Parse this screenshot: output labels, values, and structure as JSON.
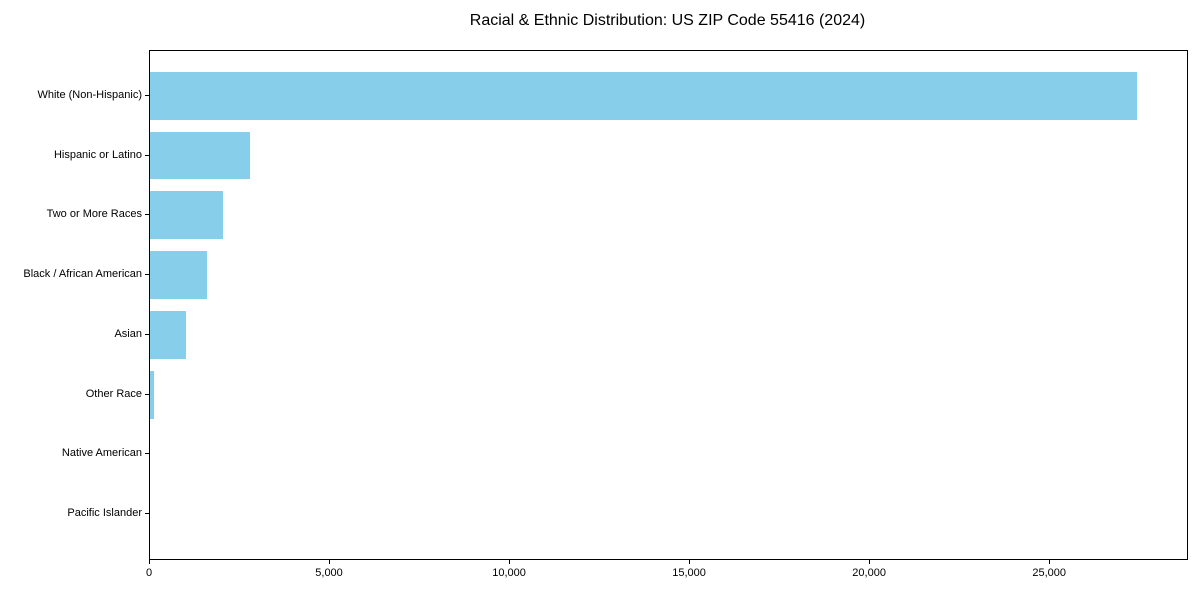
{
  "figure": {
    "background": "#ffffff"
  },
  "chart_data": {
    "type": "bar",
    "orientation": "horizontal",
    "title": "Racial & Ethnic Distribution: US ZIP Code 55416 (2024)",
    "categories": [
      "White (Non-Hispanic)",
      "Hispanic or Latino",
      "Two or More Races",
      "Black / African American",
      "Asian",
      "Other Race",
      "Native American",
      "Pacific Islander"
    ],
    "values": [
      27400,
      2780,
      2030,
      1580,
      1000,
      120,
      0,
      0
    ],
    "xlabel": "",
    "ylabel": "",
    "xlim": [
      0,
      28800
    ],
    "x_ticks": [
      0,
      5000,
      10000,
      15000,
      20000,
      25000
    ],
    "x_tick_labels": [
      "0",
      "5,000",
      "10,000",
      "15,000",
      "20,000",
      "25,000"
    ],
    "bar_color": "#87CEEB",
    "axis_color": "#000000",
    "text_color": "#000000",
    "grid": false,
    "legend": false,
    "bar_height_fraction": 0.8
  }
}
